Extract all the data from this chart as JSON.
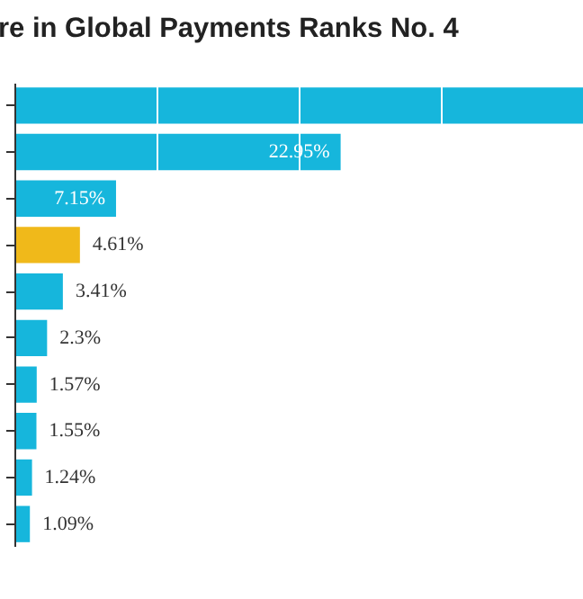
{
  "chart_data": {
    "type": "bar",
    "orientation": "horizontal",
    "title": "re in Global Payments Ranks No. 4",
    "categories": [
      null,
      null,
      null,
      null,
      null,
      null,
      null,
      null,
      null,
      null
    ],
    "values": [
      40,
      22.95,
      7.15,
      4.61,
      3.41,
      2.3,
      1.57,
      1.55,
      1.24,
      1.09
    ],
    "value_labels": [
      null,
      "22.95%",
      "7.15%",
      "4.61%",
      "3.41%",
      "2.3%",
      "1.57%",
      "1.55%",
      "1.24%",
      "1.09%"
    ],
    "colors": [
      "#16b6dc",
      "#16b6dc",
      "#16b6dc",
      "#f0b91a",
      "#16b6dc",
      "#16b6dc",
      "#16b6dc",
      "#16b6dc",
      "#16b6dc",
      "#16b6dc"
    ],
    "xlim": [
      0,
      40
    ],
    "xticks": [
      {
        "value": 0,
        "label": null
      },
      {
        "value": 10,
        "label": null
      },
      {
        "value": 20,
        "label": null
      },
      {
        "value": 30,
        "label": null
      },
      {
        "value": 40,
        "label": null
      }
    ],
    "grid": "x"
  }
}
